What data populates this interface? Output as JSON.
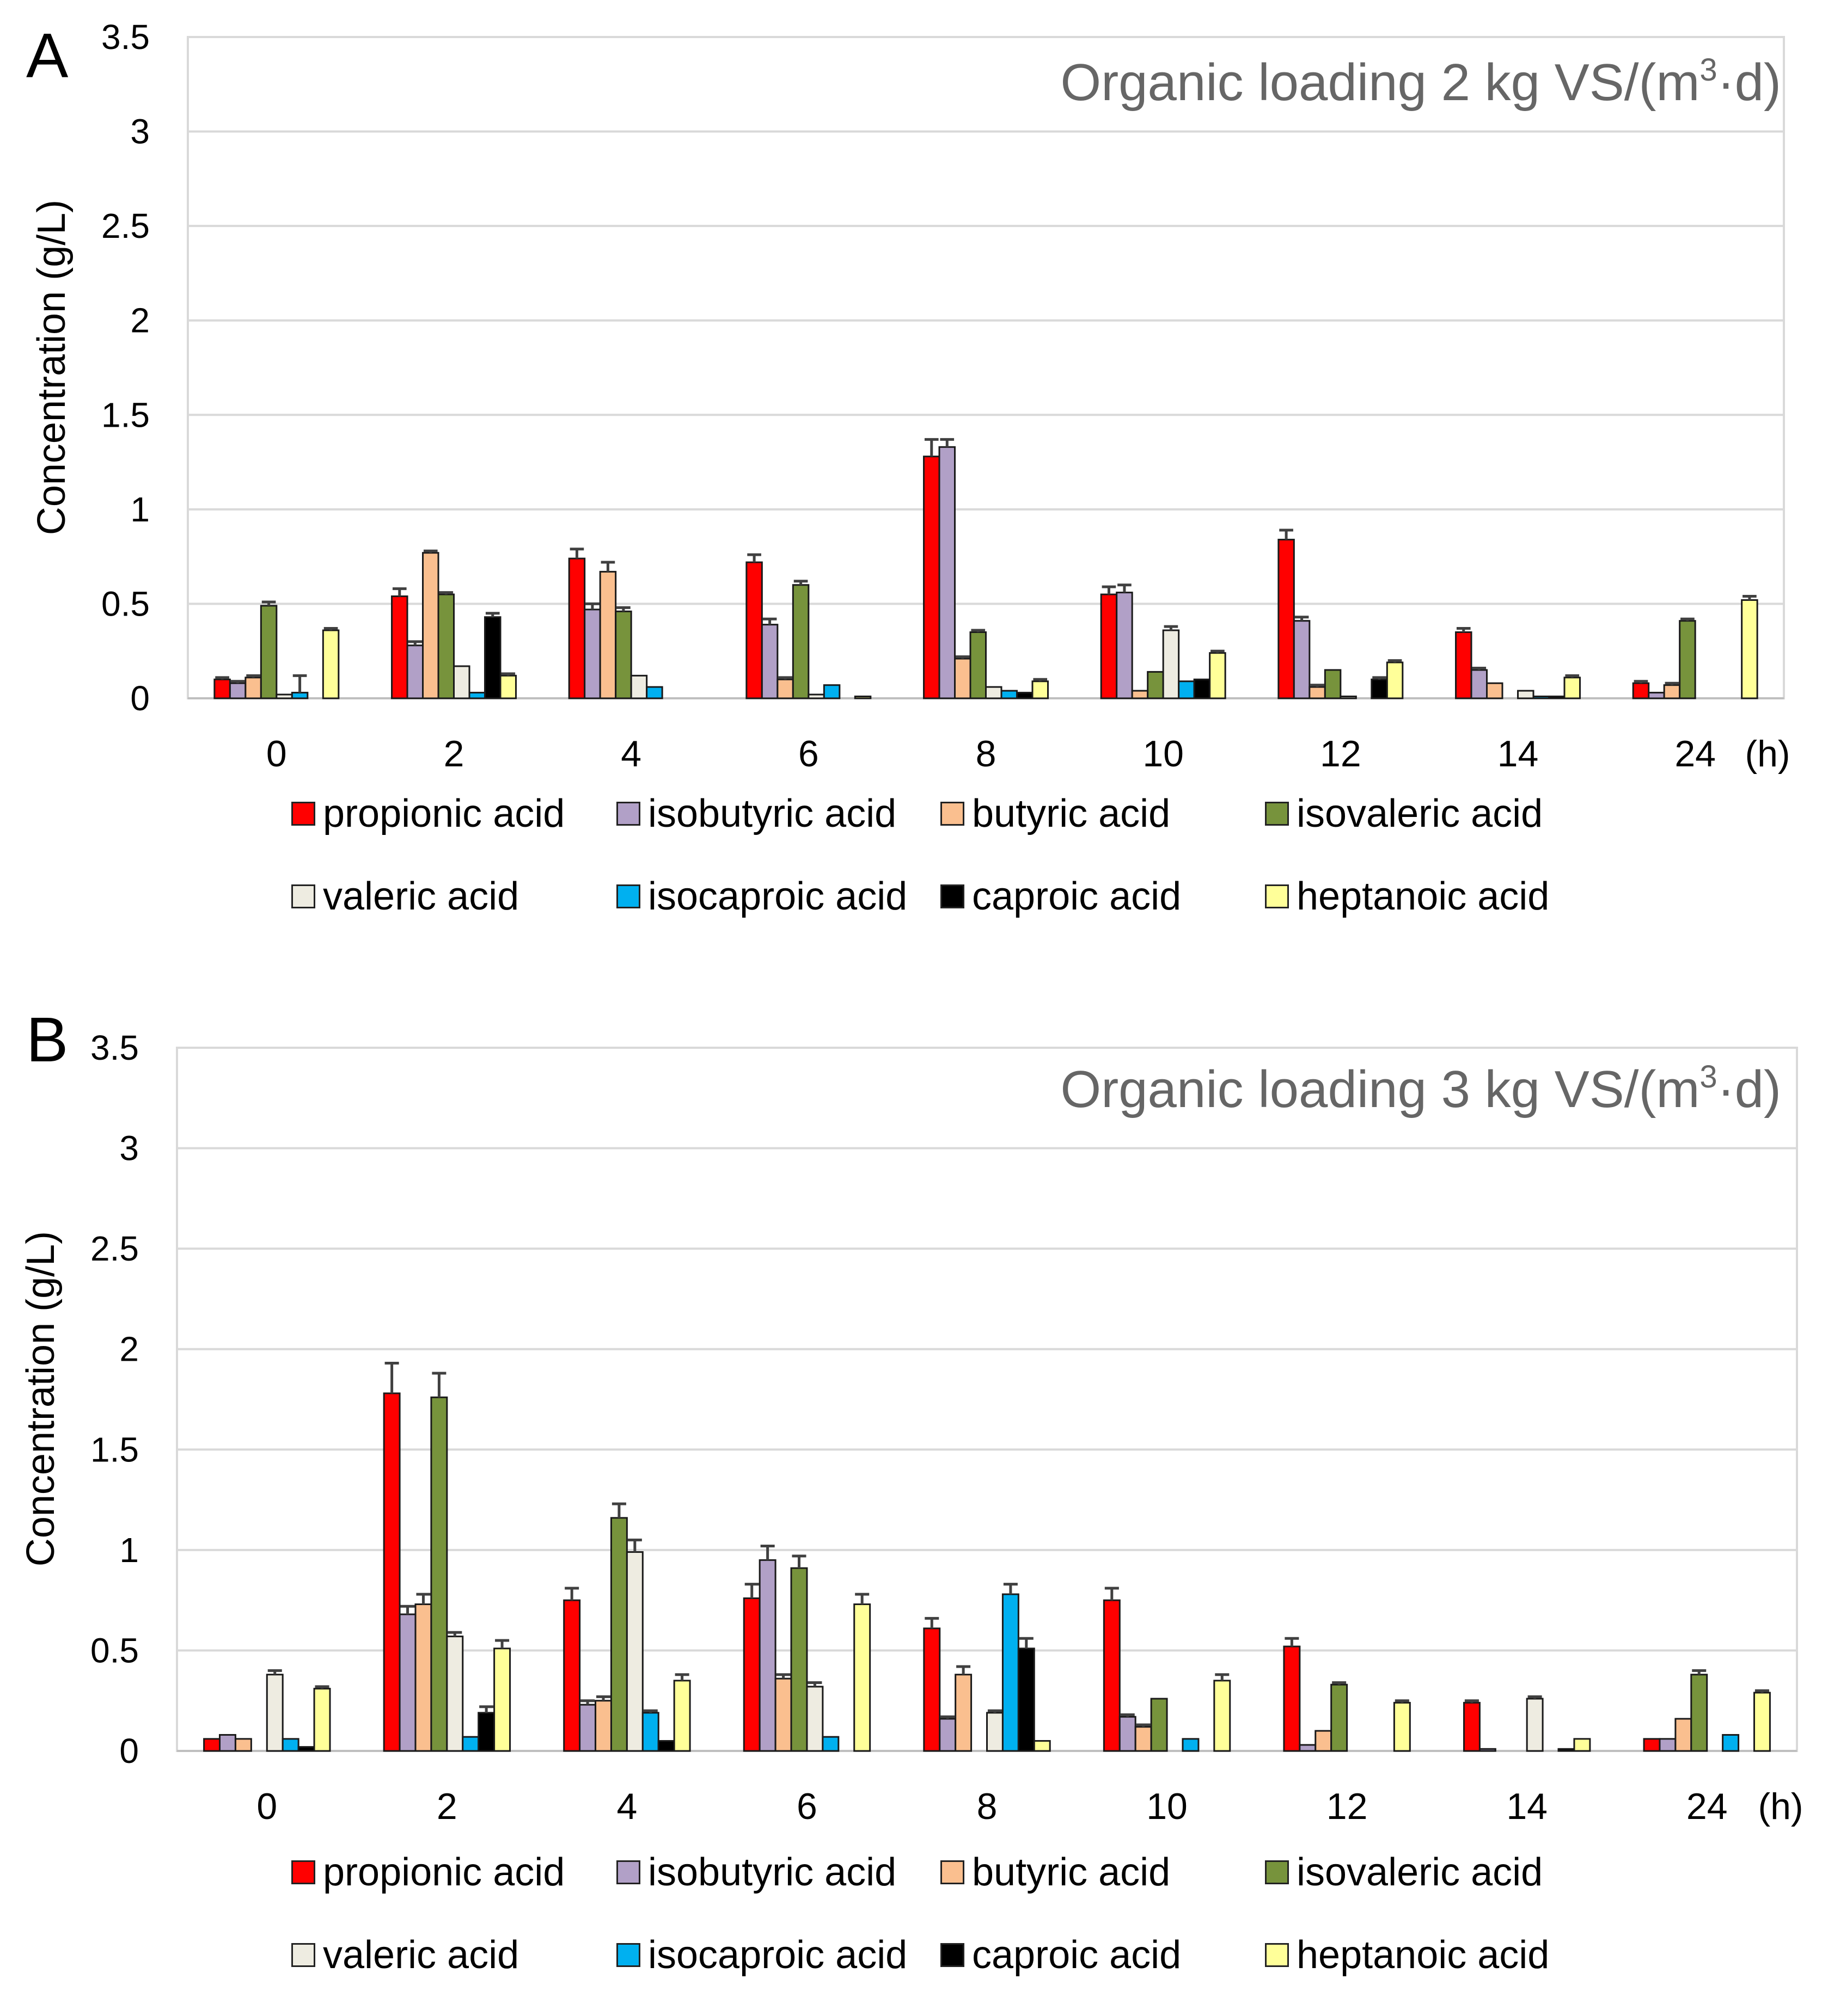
{
  "colors": {
    "propionic": "#ff0000",
    "isobutyric": "#b1a0c7",
    "butyric": "#fabf8f",
    "isovaleric": "#77933c",
    "valeric": "#eeece1",
    "isocaproic": "#00b0f0",
    "caproic": "#000000",
    "heptanoic": "#ffff99",
    "grid": "#d9d9d9",
    "error_bar": "#404040"
  },
  "legend": [
    {
      "label": "propionic acid",
      "color_key": "propionic"
    },
    {
      "label": "isobutyric acid",
      "color_key": "isobutyric"
    },
    {
      "label": "butyric acid",
      "color_key": "butyric"
    },
    {
      "label": "isovaleric acid",
      "color_key": "isovaleric"
    },
    {
      "label": "valeric acid",
      "color_key": "valeric"
    },
    {
      "label": "isocaproic acid",
      "color_key": "isocaproic"
    },
    {
      "label": "caproic acid",
      "color_key": "caproic"
    },
    {
      "label": "heptanoic acid",
      "color_key": "heptanoic"
    }
  ],
  "chart_data": [
    {
      "panel": "A",
      "type": "bar",
      "title_prefix": "Organic loading 2 kg VS/(m",
      "title_sup": "3",
      "title_suffix": "·d)",
      "ylabel": "Concentration (g/L)",
      "xlabel": "(h)",
      "ylim": [
        0,
        3.5
      ],
      "yticks": [
        "0",
        "0.5",
        "1",
        "1.5",
        "2",
        "2.5",
        "3",
        "3.5"
      ],
      "grid": true,
      "legend_position": "bottom",
      "categories": [
        "0",
        "2",
        "4",
        "6",
        "8",
        "10",
        "12",
        "14",
        "24"
      ],
      "series": [
        {
          "name": "propionic acid",
          "color_key": "propionic",
          "values": [
            0.1,
            0.54,
            0.74,
            0.72,
            1.28,
            0.55,
            0.84,
            0.35,
            0.08
          ],
          "errors": [
            0.01,
            0.04,
            0.05,
            0.04,
            0.09,
            0.04,
            0.05,
            0.02,
            0.01
          ]
        },
        {
          "name": "isobutyric acid",
          "color_key": "isobutyric",
          "values": [
            0.08,
            0.28,
            0.47,
            0.39,
            1.33,
            0.56,
            0.41,
            0.15,
            0.03
          ],
          "errors": [
            0.01,
            0.02,
            0.03,
            0.03,
            0.04,
            0.04,
            0.02,
            0.01,
            0.0
          ]
        },
        {
          "name": "butyric acid",
          "color_key": "butyric",
          "values": [
            0.11,
            0.77,
            0.67,
            0.1,
            0.21,
            0.04,
            0.06,
            0.08,
            0.07
          ],
          "errors": [
            0.01,
            0.01,
            0.05,
            0.01,
            0.01,
            0.0,
            0.01,
            0.0,
            0.01
          ]
        },
        {
          "name": "isovaleric acid",
          "color_key": "isovaleric",
          "values": [
            0.49,
            0.55,
            0.46,
            0.6,
            0.35,
            0.14,
            0.15,
            0.0,
            0.41
          ],
          "errors": [
            0.02,
            0.01,
            0.02,
            0.02,
            0.01,
            0.0,
            0.0,
            0.0,
            0.01
          ]
        },
        {
          "name": "valeric acid",
          "color_key": "valeric",
          "values": [
            0.02,
            0.17,
            0.12,
            0.02,
            0.06,
            0.36,
            0.01,
            0.04,
            0.0
          ],
          "errors": [
            0.0,
            0.0,
            0.0,
            0.0,
            0.0,
            0.02,
            0.0,
            0.0,
            0.0
          ]
        },
        {
          "name": "isocaproic acid",
          "color_key": "isocaproic",
          "values": [
            0.03,
            0.03,
            0.06,
            0.07,
            0.04,
            0.09,
            0.0,
            0.01,
            0.0
          ],
          "errors": [
            0.09,
            0.0,
            0.0,
            0.0,
            0.0,
            0.0,
            0.0,
            0.0,
            0.0
          ]
        },
        {
          "name": "caproic acid",
          "color_key": "caproic",
          "values": [
            0.0,
            0.43,
            0.0,
            0.0,
            0.03,
            0.1,
            0.1,
            0.01,
            0.0
          ],
          "errors": [
            0.0,
            0.02,
            0.0,
            0.0,
            0.0,
            0.0,
            0.01,
            0.0,
            0.0
          ]
        },
        {
          "name": "heptanoic acid",
          "color_key": "heptanoic",
          "values": [
            0.36,
            0.12,
            0.0,
            0.01,
            0.09,
            0.24,
            0.19,
            0.11,
            0.52
          ],
          "errors": [
            0.01,
            0.01,
            0.0,
            0.0,
            0.01,
            0.01,
            0.01,
            0.01,
            0.02
          ]
        }
      ]
    },
    {
      "panel": "B",
      "type": "bar",
      "title_prefix": "Organic loading 3 kg VS/(m",
      "title_sup": "3",
      "title_suffix": "·d)",
      "ylabel": "Concentration (g/L)",
      "xlabel": "(h)",
      "ylim": [
        0,
        3.5
      ],
      "yticks": [
        "0",
        "0.5",
        "1",
        "1.5",
        "2",
        "2.5",
        "3",
        "3.5"
      ],
      "grid": true,
      "legend_position": "bottom",
      "categories": [
        "0",
        "2",
        "4",
        "6",
        "8",
        "10",
        "12",
        "14",
        "24"
      ],
      "series": [
        {
          "name": "propionic acid",
          "color_key": "propionic",
          "values": [
            0.06,
            1.78,
            0.75,
            0.76,
            0.61,
            0.75,
            0.52,
            0.24,
            0.06
          ],
          "errors": [
            0.0,
            0.15,
            0.06,
            0.07,
            0.05,
            0.06,
            0.04,
            0.01,
            0.0
          ]
        },
        {
          "name": "isobutyric acid",
          "color_key": "isobutyric",
          "values": [
            0.08,
            0.68,
            0.23,
            0.95,
            0.16,
            0.17,
            0.03,
            0.01,
            0.06
          ],
          "errors": [
            0.0,
            0.04,
            0.02,
            0.07,
            0.01,
            0.01,
            0.0,
            0.0,
            0.0
          ]
        },
        {
          "name": "butyric acid",
          "color_key": "butyric",
          "values": [
            0.06,
            0.73,
            0.25,
            0.36,
            0.38,
            0.12,
            0.1,
            0.0,
            0.16
          ],
          "errors": [
            0.0,
            0.05,
            0.02,
            0.02,
            0.04,
            0.01,
            0.0,
            0.0,
            0.0
          ]
        },
        {
          "name": "isovaleric acid",
          "color_key": "isovaleric",
          "values": [
            0.0,
            1.76,
            1.16,
            0.91,
            0.0,
            0.26,
            0.33,
            0.0,
            0.38
          ],
          "errors": [
            0.0,
            0.12,
            0.07,
            0.06,
            0.0,
            0.0,
            0.01,
            0.0,
            0.02
          ]
        },
        {
          "name": "valeric acid",
          "color_key": "valeric",
          "values": [
            0.38,
            0.57,
            0.99,
            0.32,
            0.19,
            0.0,
            0.0,
            0.26,
            0.0
          ],
          "errors": [
            0.02,
            0.02,
            0.06,
            0.02,
            0.01,
            0.0,
            0.0,
            0.01,
            0.0
          ]
        },
        {
          "name": "isocaproic acid",
          "color_key": "isocaproic",
          "values": [
            0.06,
            0.07,
            0.19,
            0.07,
            0.78,
            0.06,
            0.0,
            0.0,
            0.08
          ],
          "errors": [
            0.0,
            0.0,
            0.01,
            0.0,
            0.05,
            0.0,
            0.0,
            0.0,
            0.0
          ]
        },
        {
          "name": "caproic acid",
          "color_key": "caproic",
          "values": [
            0.02,
            0.19,
            0.05,
            0.0,
            0.51,
            0.0,
            0.0,
            0.01,
            0.0
          ],
          "errors": [
            0.0,
            0.03,
            0.0,
            0.0,
            0.05,
            0.0,
            0.0,
            0.0,
            0.0
          ]
        },
        {
          "name": "heptanoic acid",
          "color_key": "heptanoic",
          "values": [
            0.31,
            0.51,
            0.35,
            0.73,
            0.05,
            0.35,
            0.24,
            0.06,
            0.29
          ],
          "errors": [
            0.01,
            0.04,
            0.03,
            0.05,
            0.0,
            0.03,
            0.01,
            0.0,
            0.01
          ]
        }
      ]
    }
  ]
}
